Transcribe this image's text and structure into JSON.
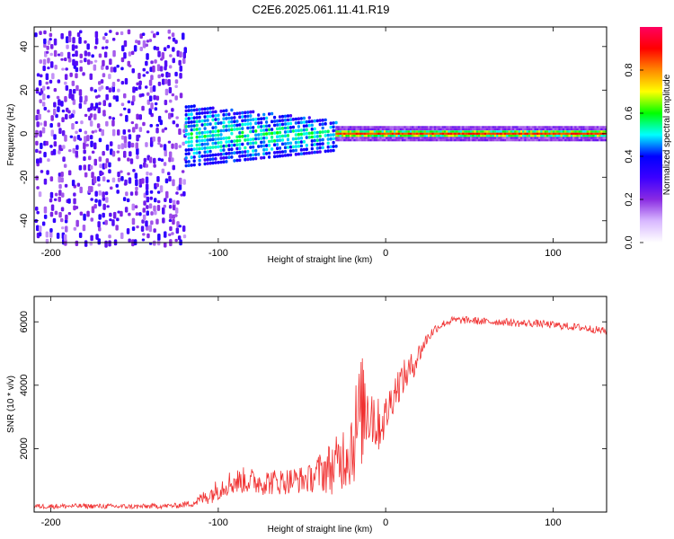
{
  "title": "C2E6.2025.061.11.41.R19",
  "chart_data": [
    {
      "type": "heatmap",
      "name": "spectrogram",
      "xlabel": "Height of straight line (km)",
      "ylabel": "Frequency (Hz)",
      "xlim": [
        -210,
        132
      ],
      "ylim": [
        -50,
        49
      ],
      "xticks": [
        -200,
        -100,
        0,
        100
      ],
      "xtick_labels": [
        "-200",
        "-100",
        "0",
        "100"
      ],
      "yticks": [
        -40,
        -20,
        0,
        20,
        40
      ],
      "ytick_labels": [
        "-40",
        "-20",
        "0",
        "20",
        "40"
      ],
      "colorbar": {
        "label": "Normalized spectral amplitude",
        "range": [
          0.0,
          1.0
        ],
        "ticks": [
          0.0,
          0.2,
          0.4,
          0.6,
          0.8
        ],
        "tick_labels": [
          "0.0",
          "0.2",
          "0.4",
          "0.6",
          "0.8"
        ],
        "colors": [
          "#ffffff",
          "#d8b8ff",
          "#8a2be2",
          "#3c00ff",
          "#0000ff",
          "#00ffff",
          "#00ff00",
          "#ffff00",
          "#ff8800",
          "#ff0000",
          "#ff0060"
        ]
      },
      "regions": [
        {
          "x_range": [
            -210,
            -120
          ],
          "description": "broadband noise across all frequencies",
          "freq_range": [
            -50,
            49
          ],
          "amplitude": "low"
        },
        {
          "x_range": [
            -120,
            -30
          ],
          "description": "band centered at 0 Hz, spread about +/-10 Hz",
          "freq_range": [
            -12,
            12
          ],
          "amplitude": "medium"
        },
        {
          "x_range": [
            -30,
            132
          ],
          "description": "narrow line at 0 Hz",
          "freq_range": [
            -3,
            3
          ],
          "amplitude": "high"
        }
      ]
    },
    {
      "type": "line",
      "name": "snr",
      "xlabel": "Height of straight line (km)",
      "ylabel": "SNR (10 * v/v)",
      "xlim": [
        -210,
        132
      ],
      "ylim": [
        0,
        6800
      ],
      "xticks": [
        -200,
        -100,
        0,
        100
      ],
      "xtick_labels": [
        "-200",
        "-100",
        "0",
        "100"
      ],
      "yticks": [
        2000,
        4000,
        6000
      ],
      "ytick_labels": [
        "2000",
        "4000",
        "6000"
      ],
      "series": [
        {
          "name": "SNR",
          "color": "#f03030",
          "x": [
            -210,
            -180,
            -150,
            -125,
            -115,
            -105,
            -95,
            -85,
            -75,
            -65,
            -55,
            -45,
            -40,
            -35,
            -30,
            -25,
            -20,
            -15,
            -10,
            -5,
            0,
            5,
            10,
            15,
            20,
            25,
            30,
            35,
            40,
            50,
            60,
            70,
            80,
            90,
            100,
            110,
            120,
            132
          ],
          "y": [
            180,
            190,
            170,
            200,
            280,
            550,
            900,
            1000,
            950,
            950,
            1000,
            1050,
            1250,
            1350,
            1450,
            1800,
            2200,
            3100,
            3500,
            2700,
            3000,
            3800,
            4200,
            4500,
            5000,
            5500,
            5800,
            5950,
            6050,
            6050,
            6000,
            6000,
            5950,
            5950,
            5900,
            5850,
            5800,
            5700
          ],
          "noise_amplitude": [
            80,
            80,
            80,
            80,
            120,
            300,
            400,
            420,
            420,
            420,
            420,
            450,
            600,
            800,
            900,
            1100,
            1500,
            1800,
            1600,
            900,
            700,
            600,
            550,
            500,
            350,
            200,
            150,
            120,
            120,
            120,
            120,
            120,
            120,
            120,
            120,
            120,
            120,
            120
          ]
        }
      ]
    }
  ]
}
